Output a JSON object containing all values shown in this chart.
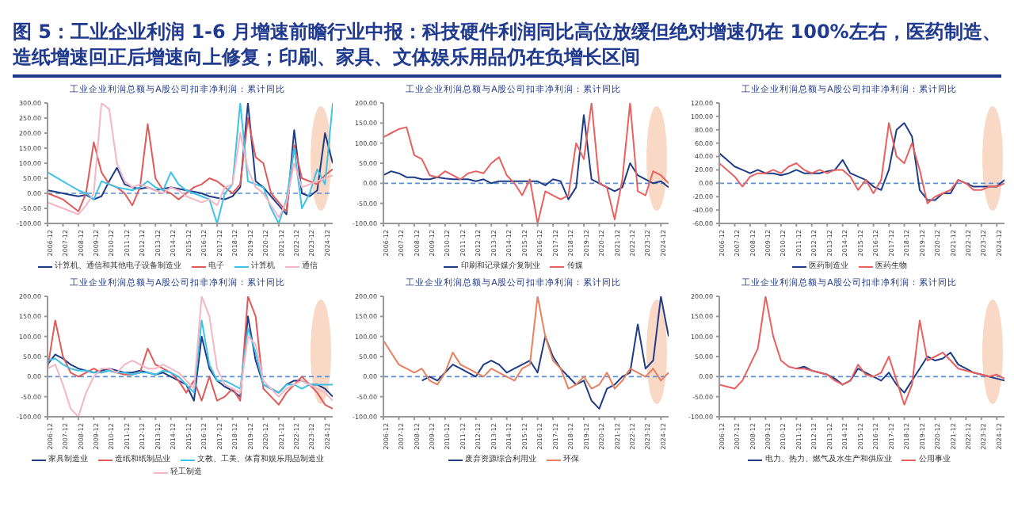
{
  "chart_data": [
    {
      "type": "other",
      "title": "图 5：工业企业利润 1-6 月增速前瞻行业中报：科技硬件利润同比高位放缓但绝对增速仍在 100%左右，医药制造、造纸增速回正后增速向上修复；印刷、家具、文体娱乐用品仍在负增长区间"
    },
    {
      "type": "line",
      "title": "工业企业利润总额与A股公司扣非净利润：累计同比",
      "x": [
        "2006-12",
        "2007-06",
        "2007-12",
        "2008-06",
        "2008-12",
        "2009-06",
        "2009-12",
        "2010-06",
        "2010-12",
        "2011-06",
        "2011-12",
        "2012-06",
        "2012-12",
        "2013-06",
        "2013-12",
        "2014-06",
        "2014-12",
        "2015-06",
        "2015-12",
        "2016-06",
        "2016-12",
        "2017-06",
        "2017-12",
        "2018-06",
        "2018-12",
        "2019-06",
        "2019-12",
        "2020-06",
        "2020-12",
        "2021-06",
        "2021-12",
        "2022-06",
        "2022-12",
        "2023-06",
        "2023-12",
        "2024-06",
        "2024-12",
        "2025-06"
      ],
      "xlim": [
        "2006-12",
        "2025-06"
      ],
      "xticks": [
        "2006-12",
        "2007-12",
        "2008-12",
        "2009-12",
        "2010-12",
        "2011-12",
        "2012-12",
        "2013-12",
        "2014-12",
        "2015-12",
        "2016-12",
        "2017-12",
        "2018-12",
        "2019-12",
        "2020-12",
        "2021-12",
        "2022-12",
        "2023-12",
        "2024-12"
      ],
      "ylim": [
        -100,
        300
      ],
      "yticks": [
        {
          "value": -100,
          "label": "-100.00"
        },
        {
          "value": -50,
          "label": "-50.00"
        },
        {
          "value": 0,
          "label": "0.00"
        },
        {
          "value": 50,
          "label": "50.00"
        },
        {
          "value": 100,
          "label": "100.00"
        },
        {
          "value": 150,
          "label": "150.00"
        },
        {
          "value": 200,
          "label": "200.00"
        },
        {
          "value": 250,
          "label": "250.00"
        },
        {
          "value": 300,
          "label": "300.00"
        }
      ],
      "legend": "bottom",
      "marker": "none",
      "line_style": "solid",
      "ref_lines": [
        {
          "axis": "y",
          "value": 0,
          "color": "#5b8fd6",
          "line_style": "dashed"
        }
      ],
      "series": [
        {
          "name": "计算机、通信和其他电子设备制造业",
          "color": "#1f3c88",
          "values": [
            10,
            5,
            0,
            -5,
            -10,
            -5,
            -20,
            -10,
            40,
            85,
            30,
            20,
            15,
            20,
            10,
            15,
            20,
            15,
            10,
            5,
            0,
            -10,
            -15,
            -20,
            -10,
            20,
            300,
            40,
            20,
            -10,
            -40,
            -70,
            210,
            0,
            -10,
            10,
            200,
            100
          ]
        },
        {
          "name": "电子",
          "color": "#e05a5a",
          "values": [
            0,
            -10,
            -20,
            -40,
            -60,
            0,
            170,
            70,
            30,
            20,
            0,
            -40,
            20,
            230,
            50,
            10,
            0,
            -20,
            0,
            20,
            30,
            50,
            40,
            20,
            0,
            30,
            250,
            120,
            100,
            0,
            -30,
            -60,
            160,
            50,
            40,
            30,
            60,
            80
          ]
        },
        {
          "name": "计算机",
          "color": "#3fc1e8",
          "values": [
            70,
            55,
            40,
            25,
            10,
            0,
            -20,
            40,
            30,
            20,
            15,
            10,
            20,
            40,
            20,
            10,
            70,
            30,
            10,
            0,
            -10,
            -20,
            -100,
            0,
            30,
            300,
            40,
            30,
            20,
            -50,
            -100,
            -20,
            150,
            -50,
            0,
            80,
            30,
            300
          ]
        },
        {
          "name": "通信",
          "color": "#f4b6c2",
          "values": [
            -30,
            -40,
            -50,
            -60,
            -70,
            -40,
            0,
            300,
            280,
            100,
            40,
            20,
            30,
            20,
            10,
            0,
            20,
            10,
            -10,
            -20,
            -30,
            -20,
            -40,
            20,
            30,
            200,
            80,
            20,
            0,
            -40,
            -80,
            -30,
            100,
            20,
            30,
            40,
            50,
            60
          ]
        }
      ]
    },
    {
      "type": "line",
      "title": "工业企业利润总额与A股公司扣非净利润：累计同比",
      "x": [
        "2006-12",
        "2007-06",
        "2007-12",
        "2008-06",
        "2008-12",
        "2009-06",
        "2009-12",
        "2010-06",
        "2010-12",
        "2011-06",
        "2011-12",
        "2012-06",
        "2012-12",
        "2013-06",
        "2013-12",
        "2014-06",
        "2014-12",
        "2015-06",
        "2015-12",
        "2016-06",
        "2016-12",
        "2017-06",
        "2017-12",
        "2018-06",
        "2018-12",
        "2019-06",
        "2019-12",
        "2020-06",
        "2020-12",
        "2021-06",
        "2021-12",
        "2022-06",
        "2022-12",
        "2023-06",
        "2023-12",
        "2024-06",
        "2024-12",
        "2025-06"
      ],
      "xlim": [
        "2006-12",
        "2025-06"
      ],
      "xticks": [
        "2006-12",
        "2007-12",
        "2008-12",
        "2009-12",
        "2010-12",
        "2011-12",
        "2012-12",
        "2013-12",
        "2014-12",
        "2015-12",
        "2016-12",
        "2017-12",
        "2018-12",
        "2019-12",
        "2020-12",
        "2021-12",
        "2022-12",
        "2023-12",
        "2024-12"
      ],
      "ylim": [
        -100,
        200
      ],
      "yticks": [
        {
          "value": -100,
          "label": "-100.00"
        },
        {
          "value": -50,
          "label": "-50.00"
        },
        {
          "value": 0,
          "label": "0.00"
        },
        {
          "value": 50,
          "label": "50.00"
        },
        {
          "value": 100,
          "label": "100.00"
        },
        {
          "value": 150,
          "label": "150.00"
        },
        {
          "value": 200,
          "label": "200.00"
        }
      ],
      "legend": "bottom",
      "marker": "none",
      "line_style": "solid",
      "ref_lines": [
        {
          "axis": "y",
          "value": 0,
          "color": "#5b8fd6",
          "line_style": "dashed"
        }
      ],
      "series": [
        {
          "name": "印刷和记录媒介复制业",
          "color": "#1f3c88",
          "values": [
            20,
            30,
            25,
            15,
            15,
            10,
            10,
            15,
            12,
            10,
            10,
            10,
            5,
            10,
            0,
            5,
            5,
            5,
            5,
            5,
            5,
            -5,
            10,
            5,
            -40,
            -10,
            170,
            10,
            0,
            -10,
            -20,
            -10,
            50,
            20,
            10,
            0,
            5,
            -10
          ]
        },
        {
          "name": "传媒",
          "color": "#e8605f",
          "values": [
            115,
            125,
            135,
            140,
            70,
            60,
            20,
            15,
            30,
            20,
            10,
            25,
            30,
            25,
            50,
            65,
            20,
            0,
            -30,
            10,
            -100,
            -20,
            -30,
            -40,
            -30,
            100,
            60,
            200,
            0,
            -10,
            -90,
            10,
            200,
            -20,
            -30,
            30,
            20,
            0
          ]
        }
      ]
    },
    {
      "type": "line",
      "title": "工业企业利润总额与A股公司扣非净利润：累计同比",
      "x": [
        "2006-12",
        "2007-06",
        "2007-12",
        "2008-06",
        "2008-12",
        "2009-06",
        "2009-12",
        "2010-06",
        "2010-12",
        "2011-06",
        "2011-12",
        "2012-06",
        "2012-12",
        "2013-06",
        "2013-12",
        "2014-06",
        "2014-12",
        "2015-06",
        "2015-12",
        "2016-06",
        "2016-12",
        "2017-06",
        "2017-12",
        "2018-06",
        "2018-12",
        "2019-06",
        "2019-12",
        "2020-06",
        "2020-12",
        "2021-06",
        "2021-12",
        "2022-06",
        "2022-12",
        "2023-06",
        "2023-12",
        "2024-06",
        "2024-12",
        "2025-06"
      ],
      "xlim": [
        "2006-12",
        "2025-06"
      ],
      "xticks": [
        "2006-12",
        "2007-12",
        "2008-12",
        "2009-12",
        "2010-12",
        "2011-12",
        "2012-12",
        "2013-12",
        "2014-12",
        "2015-12",
        "2016-12",
        "2017-12",
        "2018-12",
        "2019-12",
        "2020-12",
        "2021-12",
        "2022-12",
        "2023-12",
        "2024-12"
      ],
      "ylim": [
        -60,
        120
      ],
      "yticks": [
        {
          "value": -60,
          "label": "-60.00"
        },
        {
          "value": -40,
          "label": "-40.00"
        },
        {
          "value": -20,
          "label": "-20.00"
        },
        {
          "value": 0,
          "label": "0.00"
        },
        {
          "value": 20,
          "label": "20.00"
        },
        {
          "value": 40,
          "label": "40.00"
        },
        {
          "value": 60,
          "label": "60.00"
        },
        {
          "value": 80,
          "label": "80.00"
        },
        {
          "value": 100,
          "label": "100.00"
        },
        {
          "value": 120,
          "label": "120.00"
        }
      ],
      "legend": "bottom",
      "marker": "none",
      "line_style": "solid",
      "ref_lines": [
        {
          "axis": "y",
          "value": 0,
          "color": "#5b8fd6",
          "line_style": "dashed"
        }
      ],
      "series": [
        {
          "name": "医药制造业",
          "color": "#1f3c88",
          "values": [
            45,
            35,
            25,
            20,
            15,
            20,
            15,
            15,
            12,
            15,
            20,
            15,
            15,
            15,
            18,
            20,
            35,
            15,
            10,
            5,
            -5,
            -10,
            20,
            80,
            90,
            70,
            -10,
            -25,
            -25,
            -15,
            -15,
            5,
            0,
            -5,
            -5,
            -5,
            -5,
            5
          ]
        },
        {
          "name": "医药生物",
          "color": "#e8605f",
          "values": [
            30,
            20,
            10,
            -5,
            10,
            15,
            15,
            20,
            15,
            25,
            30,
            20,
            15,
            20,
            15,
            20,
            20,
            10,
            -10,
            5,
            -15,
            5,
            90,
            40,
            30,
            60,
            20,
            -30,
            -20,
            -15,
            -10,
            5,
            0,
            -10,
            -10,
            -5,
            -5,
            0
          ]
        }
      ]
    },
    {
      "type": "line",
      "title": "工业企业利润总额与A股公司扣非净利润：累计同比",
      "x": [
        "2006-12",
        "2007-06",
        "2007-12",
        "2008-06",
        "2008-12",
        "2009-06",
        "2009-12",
        "2010-06",
        "2010-12",
        "2011-06",
        "2011-12",
        "2012-06",
        "2012-12",
        "2013-06",
        "2013-12",
        "2014-06",
        "2014-12",
        "2015-06",
        "2015-12",
        "2016-06",
        "2016-12",
        "2017-06",
        "2017-12",
        "2018-06",
        "2018-12",
        "2019-06",
        "2019-12",
        "2020-06",
        "2020-12",
        "2021-06",
        "2021-12",
        "2022-06",
        "2022-12",
        "2023-06",
        "2023-12",
        "2024-06",
        "2024-12",
        "2025-06"
      ],
      "xlim": [
        "2006-12",
        "2025-06"
      ],
      "xticks": [
        "2006-12",
        "2007-12",
        "2008-12",
        "2009-12",
        "2010-12",
        "2011-12",
        "2012-12",
        "2013-12",
        "2014-12",
        "2015-12",
        "2016-12",
        "2017-12",
        "2018-12",
        "2019-12",
        "2020-12",
        "2021-12",
        "2022-12",
        "2023-12",
        "2024-12"
      ],
      "ylim": [
        -100,
        200
      ],
      "yticks": [
        {
          "value": -100,
          "label": "-100.00"
        },
        {
          "value": -50,
          "label": "-50.00"
        },
        {
          "value": 0,
          "label": "0.00"
        },
        {
          "value": 50,
          "label": "50.00"
        },
        {
          "value": 100,
          "label": "100.00"
        },
        {
          "value": 150,
          "label": "150.00"
        },
        {
          "value": 200,
          "label": "200.00"
        }
      ],
      "legend": "bottom",
      "marker": "none",
      "line_style": "solid",
      "ref_lines": [
        {
          "axis": "y",
          "value": 0,
          "color": "#5b8fd6",
          "line_style": "dashed"
        }
      ],
      "series": [
        {
          "name": "家具制造业",
          "color": "#1f3c88",
          "values": [
            30,
            55,
            45,
            30,
            20,
            15,
            10,
            15,
            20,
            15,
            10,
            10,
            15,
            10,
            5,
            10,
            0,
            -10,
            -20,
            -60,
            100,
            20,
            -10,
            -25,
            -35,
            -50,
            150,
            40,
            -20,
            -30,
            -40,
            -20,
            -10,
            -10,
            -20,
            -20,
            -30,
            -50
          ]
        },
        {
          "name": "造纸和纸制品业",
          "color": "#e05a5a",
          "values": [
            20,
            140,
            50,
            10,
            0,
            10,
            20,
            10,
            15,
            10,
            5,
            5,
            10,
            70,
            30,
            20,
            10,
            -10,
            -40,
            -10,
            -60,
            0,
            -60,
            -50,
            -30,
            -60,
            200,
            150,
            -30,
            -50,
            -70,
            -40,
            -20,
            0,
            -20,
            -40,
            -70,
            -80
          ]
        },
        {
          "name": "文教、工美、体育和娱乐用品制造业",
          "color": "#3fc1e8",
          "values": [
            40,
            45,
            30,
            20,
            15,
            15,
            10,
            10,
            15,
            10,
            10,
            5,
            10,
            10,
            5,
            15,
            10,
            0,
            -20,
            -40,
            140,
            30,
            -10,
            -10,
            -20,
            -30,
            120,
            60,
            -20,
            -30,
            -40,
            -20,
            -20,
            -30,
            -20,
            -20,
            -20,
            -20
          ]
        },
        {
          "name": "轻工制造",
          "color": "#f4b6c2",
          "values": [
            20,
            30,
            -20,
            -80,
            -100,
            -40,
            0,
            20,
            20,
            10,
            30,
            40,
            30,
            20,
            20,
            30,
            20,
            10,
            -10,
            -30,
            200,
            150,
            20,
            -20,
            -30,
            -40,
            100,
            80,
            -10,
            -30,
            -50,
            -30,
            -20,
            -10,
            -20,
            -30,
            -40,
            -60
          ]
        }
      ]
    },
    {
      "type": "line",
      "title": "工业企业利润总额与A股公司扣非净利润：累计同比",
      "x": [
        "2006-12",
        "2007-06",
        "2007-12",
        "2008-06",
        "2008-12",
        "2009-06",
        "2009-12",
        "2010-06",
        "2010-12",
        "2011-06",
        "2011-12",
        "2012-06",
        "2012-12",
        "2013-06",
        "2013-12",
        "2014-06",
        "2014-12",
        "2015-06",
        "2015-12",
        "2016-06",
        "2016-12",
        "2017-06",
        "2017-12",
        "2018-06",
        "2018-12",
        "2019-06",
        "2019-12",
        "2020-06",
        "2020-12",
        "2021-06",
        "2021-12",
        "2022-06",
        "2022-12",
        "2023-06",
        "2023-12",
        "2024-06",
        "2024-12",
        "2025-06"
      ],
      "xlim": [
        "2006-12",
        "2025-06"
      ],
      "xticks": [
        "2006-12",
        "2007-12",
        "2008-12",
        "2009-12",
        "2010-12",
        "2011-12",
        "2012-12",
        "2013-12",
        "2014-12",
        "2015-12",
        "2016-12",
        "2017-12",
        "2018-12",
        "2019-12",
        "2020-12",
        "2021-12",
        "2022-12",
        "2023-12",
        "2024-12"
      ],
      "ylim": [
        -100,
        200
      ],
      "yticks": [
        {
          "value": -100,
          "label": "-100.00"
        },
        {
          "value": -50,
          "label": "-50.00"
        },
        {
          "value": 0,
          "label": "0.00"
        },
        {
          "value": 50,
          "label": "50.00"
        },
        {
          "value": 100,
          "label": "100.00"
        },
        {
          "value": 150,
          "label": "150.00"
        },
        {
          "value": 200,
          "label": "200.00"
        }
      ],
      "legend": "bottom",
      "marker": "none",
      "line_style": "solid",
      "ref_lines": [
        {
          "axis": "y",
          "value": 0,
          "color": "#5b8fd6",
          "line_style": "dashed"
        }
      ],
      "series": [
        {
          "name": "废弃资源综合利用业",
          "color": "#1f3c88",
          "values": [
            null,
            null,
            null,
            null,
            null,
            -10,
            0,
            -10,
            10,
            30,
            20,
            10,
            0,
            30,
            40,
            30,
            10,
            20,
            30,
            40,
            10,
            100,
            50,
            20,
            0,
            -20,
            -10,
            -60,
            -80,
            -30,
            -20,
            0,
            10,
            130,
            20,
            40,
            200,
            100
          ]
        },
        {
          "name": "环保",
          "color": "#e8805f",
          "values": [
            90,
            60,
            30,
            20,
            10,
            20,
            -10,
            -20,
            10,
            60,
            30,
            20,
            10,
            0,
            20,
            10,
            0,
            -10,
            20,
            30,
            200,
            100,
            40,
            20,
            -30,
            -20,
            0,
            -30,
            -20,
            10,
            -30,
            -10,
            20,
            10,
            0,
            20,
            -10,
            10
          ]
        }
      ]
    },
    {
      "type": "line",
      "title": "工业企业利润总额与A股公司扣非净利润：累计同比",
      "x": [
        "2006-12",
        "2007-06",
        "2007-12",
        "2008-06",
        "2008-12",
        "2009-06",
        "2009-12",
        "2010-06",
        "2010-12",
        "2011-06",
        "2011-12",
        "2012-06",
        "2012-12",
        "2013-06",
        "2013-12",
        "2014-06",
        "2014-12",
        "2015-06",
        "2015-12",
        "2016-06",
        "2016-12",
        "2017-06",
        "2017-12",
        "2018-06",
        "2018-12",
        "2019-06",
        "2019-12",
        "2020-06",
        "2020-12",
        "2021-06",
        "2021-12",
        "2022-06",
        "2022-12",
        "2023-06",
        "2023-12",
        "2024-06",
        "2024-12",
        "2025-06"
      ],
      "xlim": [
        "2006-12",
        "2025-06"
      ],
      "xticks": [
        "2006-12",
        "2007-12",
        "2008-12",
        "2009-12",
        "2010-12",
        "2011-12",
        "2012-12",
        "2013-12",
        "2014-12",
        "2015-12",
        "2016-12",
        "2017-12",
        "2018-12",
        "2019-12",
        "2020-12",
        "2021-12",
        "2022-12",
        "2023-12",
        "2024-12"
      ],
      "ylim": [
        -100,
        200
      ],
      "yticks": [
        {
          "value": -100,
          "label": "-100.00"
        },
        {
          "value": -50,
          "label": "-50.00"
        },
        {
          "value": 0,
          "label": "0.00"
        },
        {
          "value": 50,
          "label": "50.00"
        },
        {
          "value": 100,
          "label": "100.00"
        },
        {
          "value": 150,
          "label": "150.00"
        },
        {
          "value": 200,
          "label": "200.00"
        }
      ],
      "legend": "bottom",
      "marker": "none",
      "line_style": "solid",
      "ref_lines": [
        {
          "axis": "y",
          "value": 0,
          "color": "#5b8fd6",
          "line_style": "dashed"
        }
      ],
      "series": [
        {
          "name": "电力、热力、燃气及水生产和供应业",
          "color": "#1f3c88",
          "values": [
            null,
            null,
            null,
            null,
            null,
            null,
            null,
            null,
            null,
            null,
            20,
            25,
            15,
            10,
            5,
            -5,
            -20,
            -10,
            20,
            10,
            0,
            -10,
            10,
            -20,
            -40,
            -10,
            20,
            50,
            40,
            45,
            60,
            30,
            20,
            10,
            5,
            0,
            -5,
            -10
          ]
        },
        {
          "name": "公用事业",
          "color": "#e8605f",
          "values": [
            -20,
            -25,
            -30,
            -10,
            30,
            70,
            200,
            100,
            40,
            25,
            20,
            20,
            15,
            10,
            5,
            -10,
            -20,
            -10,
            30,
            5,
            0,
            10,
            50,
            -10,
            -70,
            -20,
            140,
            40,
            50,
            60,
            40,
            20,
            15,
            10,
            5,
            0,
            5,
            -5
          ]
        }
      ]
    }
  ]
}
